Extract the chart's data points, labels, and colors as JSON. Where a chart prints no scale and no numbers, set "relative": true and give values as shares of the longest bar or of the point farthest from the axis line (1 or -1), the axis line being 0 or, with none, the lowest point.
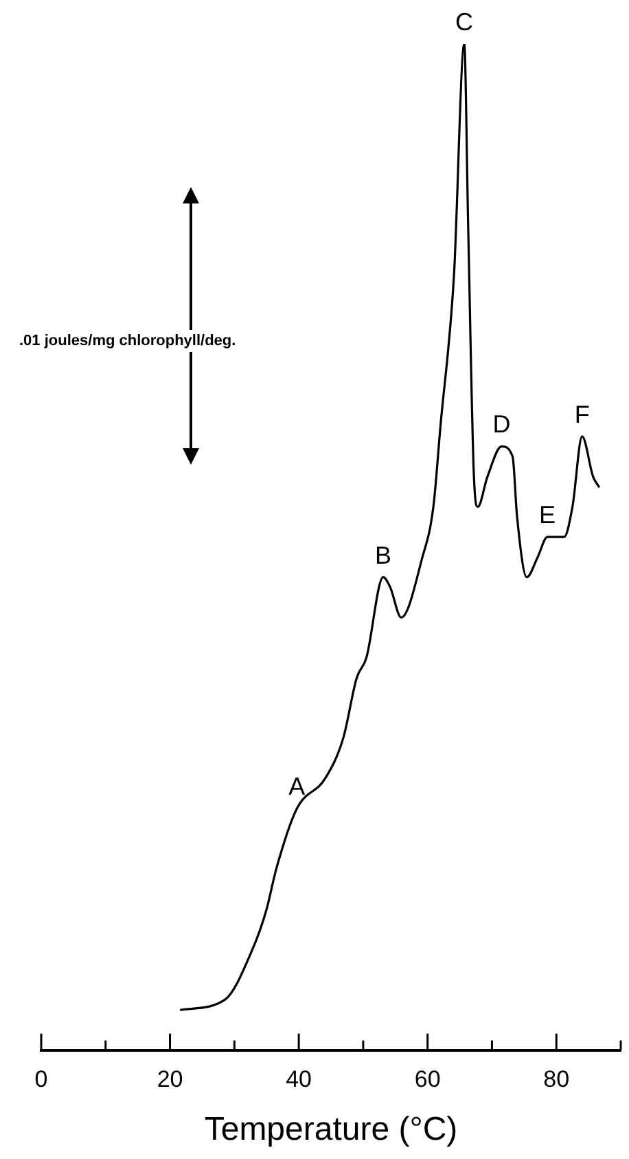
{
  "chart_data": {
    "type": "line",
    "relative": true,
    "xlabel": "Temperature (°C)",
    "x": [
      21.7,
      28.5,
      32.8,
      35.0,
      36.5,
      39.7,
      44.1,
      46.9,
      49.0,
      50.5,
      53.1,
      54.2,
      55.9,
      59.2,
      60.9,
      62.0,
      64.1,
      65.7,
      66.3,
      67.2,
      67.8,
      69.3,
      71.5,
      73.2,
      73.9,
      75.4,
      77.1,
      78.6,
      81.2,
      82.5,
      84.0,
      85.7,
      86.6
    ],
    "series": [
      {
        "color": "#000000",
        "values": [
          0.04,
          0.05,
          0.1,
          0.14,
          0.18,
          0.24,
          0.27,
          0.31,
          0.37,
          0.39,
          0.47,
          0.46,
          0.43,
          0.49,
          0.54,
          0.62,
          0.77,
          1,
          0.82,
          0.57,
          0.54,
          0.57,
          0.6,
          0.59,
          0.53,
          0.47,
          0.49,
          0.51,
          0.51,
          0.54,
          0.61,
          0.57,
          0.56
        ]
      }
    ],
    "xlim": [
      0,
      90
    ],
    "xticks": [
      0,
      {
        "value": 10,
        "label": null
      },
      20,
      {
        "value": 30,
        "label": null
      },
      40,
      {
        "value": 50,
        "label": null
      },
      60,
      {
        "value": 70,
        "label": null
      },
      80,
      {
        "value": 90,
        "label": null
      }
    ],
    "annotations": [
      ".01 joules/mg chlorophyll/deg.",
      {
        "text": "A",
        "x": 39.7,
        "y": 0.24
      },
      {
        "text": "B",
        "x": 53.1,
        "y": 0.47
      },
      {
        "text": "C",
        "x": 65.7,
        "y": 1
      },
      {
        "text": "D",
        "x": 71.5,
        "y": 0.6
      },
      {
        "text": "E",
        "x": 78.6,
        "y": 0.51
      },
      {
        "text": "F",
        "x": 84.0,
        "y": 0.61
      }
    ],
    "grid": false,
    "legend": false,
    "marker": "none",
    "line_style": "solid"
  }
}
